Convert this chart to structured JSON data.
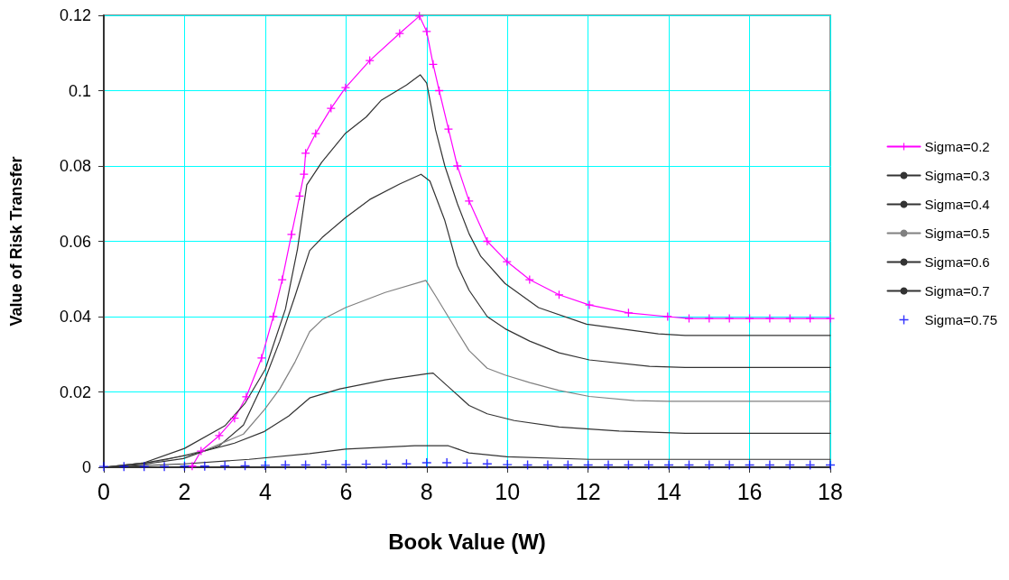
{
  "chart_data": {
    "type": "line",
    "xlabel": "Book Value (W)",
    "ylabel": "Value of Risk Transfer",
    "xlim": [
      0,
      18
    ],
    "xticks": [
      0,
      2,
      4,
      6,
      8,
      10,
      12,
      14,
      16,
      18
    ],
    "ylim": [
      0,
      0.12
    ],
    "yticks": [
      0,
      0.02,
      0.04,
      0.06,
      0.08,
      0.1,
      0.12
    ],
    "grid": true,
    "legend": "right",
    "marker": "none",
    "line_style": "solid",
    "series": [
      {
        "name": "Sigma=0.2",
        "color": "#ff00ff",
        "marker": "cross",
        "x": [
          2.19,
          2.41,
          2.86,
          3.24,
          3.53,
          3.91,
          4.2,
          4.42,
          4.65,
          4.85,
          4.96,
          5.0,
          5.25,
          5.63,
          5.99,
          6.59,
          7.33,
          7.82,
          8.0,
          8.16,
          8.31,
          8.54,
          8.76,
          9.05,
          9.5,
          9.99,
          10.55,
          11.28,
          12.03,
          13.0,
          13.97,
          14.5,
          15,
          15.5,
          16,
          16.5,
          17,
          17.5,
          18
        ],
        "values": [
          0.0003,
          0.0043,
          0.0084,
          0.013,
          0.0187,
          0.029,
          0.04,
          0.0498,
          0.0618,
          0.072,
          0.0778,
          0.0834,
          0.0886,
          0.0953,
          0.1008,
          0.108,
          0.1152,
          0.1198,
          0.1157,
          0.107,
          0.1,
          0.0898,
          0.08,
          0.0707,
          0.06,
          0.0546,
          0.0498,
          0.0458,
          0.0431,
          0.041,
          0.04,
          0.0395,
          0.0395,
          0.0395,
          0.0395,
          0.0395,
          0.0395,
          0.0395,
          0.0395
        ]
      },
      {
        "name": "Sigma=0.3",
        "color": "#333333",
        "x": [
          0,
          1,
          2,
          3,
          3.5,
          4,
          4.5,
          4.8,
          5.03,
          5.4,
          5.99,
          6.5,
          6.88,
          7.5,
          7.84,
          8.0,
          8.22,
          8.45,
          8.76,
          9.05,
          9.34,
          9.94,
          10.77,
          11.96,
          13.74,
          14.4,
          18
        ],
        "values": [
          0,
          0.0012,
          0.005,
          0.011,
          0.017,
          0.026,
          0.042,
          0.058,
          0.075,
          0.081,
          0.0887,
          0.093,
          0.0975,
          0.1015,
          0.1042,
          0.102,
          0.0896,
          0.08,
          0.07,
          0.062,
          0.056,
          0.0488,
          0.0424,
          0.038,
          0.0354,
          0.035,
          0.035
        ]
      },
      {
        "name": "Sigma=0.4",
        "color": "#333333",
        "x": [
          0,
          1,
          1.97,
          2.86,
          3.46,
          3.98,
          4.36,
          4.74,
          5.1,
          5.41,
          5.99,
          6.59,
          7.33,
          7.86,
          8.08,
          8.45,
          8.76,
          9.05,
          9.5,
          9.94,
          10.55,
          11.28,
          12.03,
          13.52,
          14.4,
          18
        ],
        "values": [
          0,
          0.0008,
          0.0023,
          0.0057,
          0.0112,
          0.023,
          0.0335,
          0.0455,
          0.0575,
          0.061,
          0.0663,
          0.0711,
          0.0752,
          0.0778,
          0.076,
          0.0655,
          0.0536,
          0.047,
          0.04,
          0.0368,
          0.0335,
          0.0304,
          0.0285,
          0.0268,
          0.0265,
          0.0265
        ]
      },
      {
        "name": "Sigma=0.5",
        "color": "#808080",
        "x": [
          0,
          1.38,
          2.5,
          3.46,
          3.98,
          4.36,
          4.74,
          5.1,
          5.41,
          5.99,
          6.97,
          7.98,
          8.22,
          8.76,
          9.05,
          9.5,
          9.94,
          10.55,
          11.28,
          12.03,
          13.15,
          13.97,
          18
        ],
        "values": [
          0,
          0.0016,
          0.0045,
          0.0088,
          0.0153,
          0.0208,
          0.028,
          0.036,
          0.0392,
          0.0424,
          0.0464,
          0.0496,
          0.0455,
          0.036,
          0.031,
          0.0263,
          0.0245,
          0.0225,
          0.0204,
          0.0188,
          0.0177,
          0.0175,
          0.0175
        ]
      },
      {
        "name": "Sigma=0.6",
        "color": "#333333",
        "x": [
          0,
          1.0,
          2.12,
          3.24,
          3.98,
          4.58,
          5.1,
          5.85,
          6.97,
          8.0,
          8.16,
          8.67,
          9.05,
          9.5,
          10.17,
          11.28,
          12.77,
          14.41,
          18
        ],
        "values": [
          0,
          0.0011,
          0.0033,
          0.0064,
          0.0095,
          0.0136,
          0.0184,
          0.0208,
          0.0232,
          0.0248,
          0.025,
          0.0201,
          0.0164,
          0.0142,
          0.0124,
          0.0107,
          0.0096,
          0.009,
          0.009
        ]
      },
      {
        "name": "Sigma=0.7",
        "color": "#333333",
        "x": [
          0,
          2,
          3.6,
          5.1,
          5.99,
          7.7,
          8.54,
          9.05,
          9.99,
          12.03,
          18
        ],
        "values": [
          0,
          0.0009,
          0.0021,
          0.0036,
          0.0048,
          0.0057,
          0.0057,
          0.0038,
          0.0028,
          0.0021,
          0.0021
        ]
      },
      {
        "name": "Sigma=0.75",
        "color": "#0000ff",
        "type": "scatter",
        "marker": "cross",
        "x": [
          0,
          0.5,
          1,
          1.5,
          2,
          2.5,
          3,
          3.5,
          4,
          4.5,
          5,
          5.5,
          6,
          6.5,
          7,
          7.5,
          8,
          8.5,
          9,
          9.5,
          10,
          10.5,
          11,
          11.5,
          12,
          12.5,
          13,
          13.5,
          14,
          14.5,
          15,
          15.5,
          16,
          16.5,
          17,
          17.5,
          18
        ],
        "values": [
          0.0002,
          0.0002,
          0.0002,
          0.0002,
          0.0003,
          0.0003,
          0.0004,
          0.0004,
          0.0005,
          0.0006,
          0.0006,
          0.0007,
          0.0007,
          0.0008,
          0.0008,
          0.0009,
          0.0012,
          0.0012,
          0.0011,
          0.0009,
          0.0007,
          0.0006,
          0.0006,
          0.0006,
          0.0006,
          0.0006,
          0.0006,
          0.0006,
          0.0006,
          0.0006,
          0.0006,
          0.0006,
          0.0006,
          0.0006,
          0.0006,
          0.0006,
          0.0006
        ]
      }
    ]
  }
}
